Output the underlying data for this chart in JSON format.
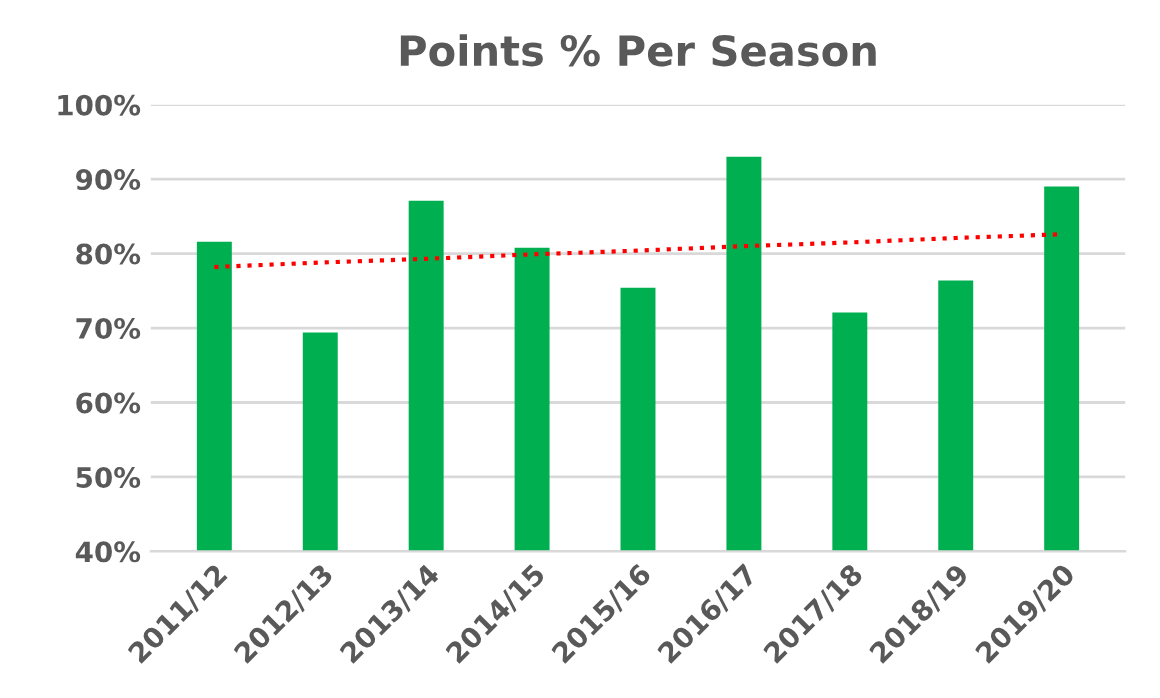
{
  "chart_data": {
    "type": "bar",
    "title": "Points % Per Season",
    "categories": [
      "2011/12",
      "2012/13",
      "2013/14",
      "2014/15",
      "2015/16",
      "2016/17",
      "2017/18",
      "2018/19",
      "2019/20"
    ],
    "series": [
      {
        "color": "#00b050",
        "values": [
          81.6,
          69.4,
          87.1,
          80.8,
          75.4,
          93.0,
          72.1,
          76.4,
          89.0
        ]
      },
      {
        "type": "line",
        "color": "#ff0000",
        "line_style": "dotted",
        "values": [
          78.2,
          78.8,
          79.3,
          79.9,
          80.4,
          81.0,
          81.5,
          82.1,
          82.6
        ]
      }
    ],
    "ylim": [
      40,
      100
    ],
    "yticks": [
      {
        "value": 40,
        "label": "40%"
      },
      {
        "value": 50,
        "label": "50%"
      },
      {
        "value": 60,
        "label": "60%"
      },
      {
        "value": 70,
        "label": "70%"
      },
      {
        "value": 80,
        "label": "80%"
      },
      {
        "value": 90,
        "label": "90%"
      },
      {
        "value": 100,
        "label": "100%"
      }
    ],
    "grid": "y",
    "legend": false
  }
}
